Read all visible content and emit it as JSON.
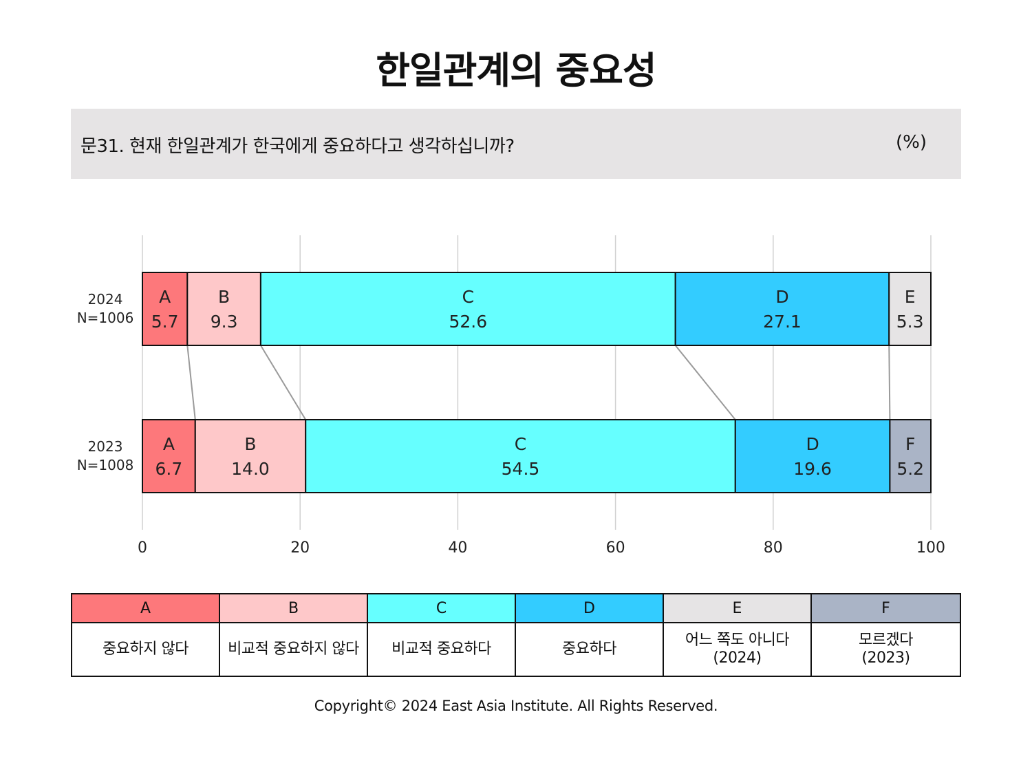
{
  "title": "한일관계의 중요성",
  "question": "문31. 현재 한일관계가 한국에게 중요하다고 생각하십니까?",
  "unit": "(%)",
  "chart_data": {
    "type": "bar",
    "orientation": "horizontal-stacked",
    "xlim": [
      0,
      100
    ],
    "xticks": [
      "0",
      "20",
      "40",
      "60",
      "80",
      "100"
    ],
    "grid": true,
    "rows": [
      {
        "year": "2024",
        "n": "N=1006",
        "segments": [
          {
            "key": "A",
            "value": 5.7,
            "label": "5.7",
            "color": "#fd787b"
          },
          {
            "key": "B",
            "value": 9.3,
            "label": "9.3",
            "color": "#fec8c9"
          },
          {
            "key": "C",
            "value": 52.6,
            "label": "52.6",
            "color": "#66ffff"
          },
          {
            "key": "D",
            "value": 27.1,
            "label": "27.1",
            "color": "#33ccff"
          },
          {
            "key": "E",
            "value": 5.3,
            "label": "5.3",
            "color": "#e6e4e5"
          }
        ]
      },
      {
        "year": "2023",
        "n": "N=1008",
        "segments": [
          {
            "key": "A",
            "value": 6.7,
            "label": "6.7",
            "color": "#fd787b"
          },
          {
            "key": "B",
            "value": 14.0,
            "label": "14.0",
            "color": "#fec8c9"
          },
          {
            "key": "C",
            "value": 54.5,
            "label": "54.5",
            "color": "#66ffff"
          },
          {
            "key": "D",
            "value": 19.6,
            "label": "19.6",
            "color": "#33ccff"
          },
          {
            "key": "F",
            "value": 5.2,
            "label": "5.2",
            "color": "#aab4c6"
          }
        ]
      }
    ]
  },
  "legend": [
    {
      "key": "A",
      "desc": "중요하지 않다",
      "color": "#fd787b"
    },
    {
      "key": "B",
      "desc": "비교적 중요하지 않다",
      "color": "#fec8c9"
    },
    {
      "key": "C",
      "desc": "비교적 중요하다",
      "color": "#66ffff"
    },
    {
      "key": "D",
      "desc": "중요하다",
      "color": "#33ccff"
    },
    {
      "key": "E",
      "desc": "어느 쪽도 아니다\n(2024)",
      "color": "#e6e4e5"
    },
    {
      "key": "F",
      "desc": "모르겠다\n(2023)",
      "color": "#aab4c6"
    }
  ],
  "copyright": "Copyright© 2024 East Asia Institute. All Rights Reserved."
}
